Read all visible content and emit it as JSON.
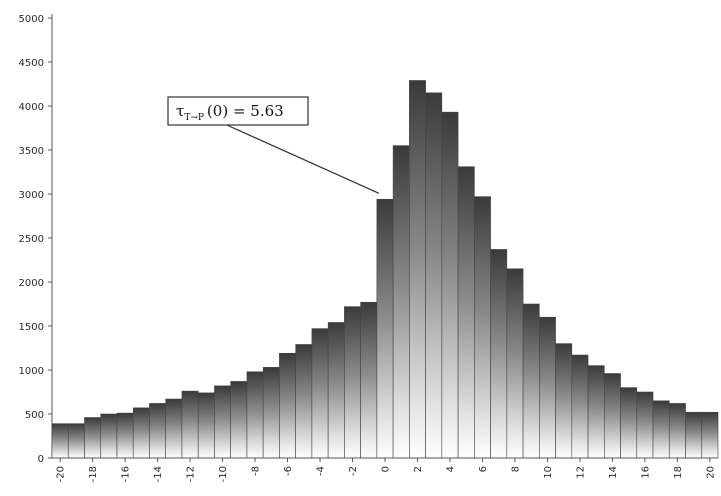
{
  "chart_data": {
    "type": "bar",
    "title": "",
    "xlabel": "",
    "ylabel": "",
    "ylim": [
      0,
      5000
    ],
    "yticks": [
      0,
      500,
      1000,
      1500,
      2000,
      2500,
      3000,
      3500,
      4000,
      4500,
      5000
    ],
    "xtick_labels": [
      "-20",
      "-18",
      "-16",
      "-14",
      "-12",
      "-10",
      "-8",
      "-6",
      "-4",
      "-2",
      "0",
      "2",
      "4",
      "6",
      "8",
      "10",
      "12",
      "14",
      "16",
      "18",
      "20"
    ],
    "grid": false,
    "legend": "none",
    "categories": [
      -20,
      -19,
      -18,
      -17,
      -16,
      -15,
      -14,
      -13,
      -12,
      -11,
      -10,
      -9,
      -8,
      -7,
      -6,
      -5,
      -4,
      -3,
      -2,
      -1,
      0,
      1,
      2,
      3,
      4,
      5,
      6,
      7,
      8,
      9,
      10,
      11,
      12,
      13,
      14,
      15,
      16,
      17,
      18,
      19,
      20
    ],
    "values": [
      390,
      390,
      460,
      500,
      510,
      570,
      620,
      670,
      760,
      740,
      820,
      870,
      980,
      1030,
      1190,
      1290,
      1470,
      1540,
      1720,
      1770,
      2940,
      3550,
      4290,
      4150,
      3930,
      3310,
      2970,
      2370,
      2150,
      1750,
      1600,
      1300,
      1170,
      1050,
      960,
      800,
      750,
      650,
      620,
      520,
      520
    ],
    "annotation": {
      "text": "τ",
      "subscript": "T→P",
      "suffix": "(0) = 5.63",
      "points_to": 0
    }
  }
}
